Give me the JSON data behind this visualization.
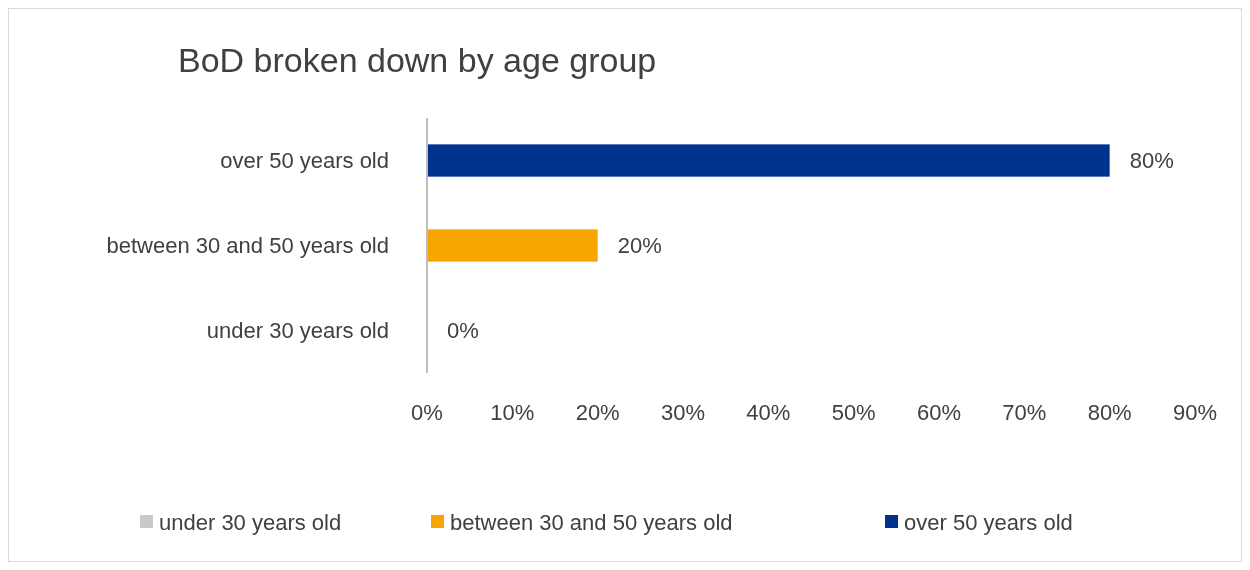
{
  "chart_data": {
    "type": "bar",
    "orientation": "horizontal",
    "title": "BoD broken down by age group",
    "categories": [
      "over 50 years old",
      "between 30 and 50 years old",
      "under 30 years old"
    ],
    "series": [
      {
        "name": "under 30 years old",
        "color": "#c9c9c9",
        "values": [
          null,
          null,
          0
        ],
        "value_labels": [
          null,
          null,
          "0%"
        ]
      },
      {
        "name": "between 30 and 50 years old",
        "color": "#f7a600",
        "values": [
          null,
          20,
          null
        ],
        "value_labels": [
          null,
          "20%",
          null
        ]
      },
      {
        "name": "over 50 years old",
        "color": "#00338d",
        "values": [
          80,
          null,
          null
        ],
        "value_labels": [
          "80%",
          null,
          null
        ]
      }
    ],
    "xlim": [
      0,
      90
    ],
    "xticks": [
      {
        "value": 0,
        "label": "0%"
      },
      {
        "value": 10,
        "label": "10%"
      },
      {
        "value": 20,
        "label": "20%"
      },
      {
        "value": 30,
        "label": "30%"
      },
      {
        "value": 40,
        "label": "40%"
      },
      {
        "value": 50,
        "label": "50%"
      },
      {
        "value": 60,
        "label": "60%"
      },
      {
        "value": 70,
        "label": "70%"
      },
      {
        "value": 80,
        "label": "80%"
      },
      {
        "value": 90,
        "label": "90%"
      }
    ],
    "legend": "bottom"
  }
}
